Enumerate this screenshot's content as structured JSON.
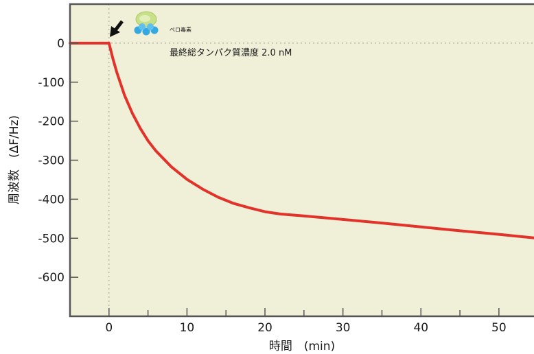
{
  "chart_data": {
    "type": "line",
    "title": "",
    "xlabel": "時間　(min)",
    "ylabel": "周波数　(ΔF/Hz)",
    "xlim": [
      -5,
      54.5
    ],
    "ylim": [
      -700,
      100
    ],
    "x_ticks": [
      0,
      10,
      20,
      30,
      40,
      50
    ],
    "x_tick_labels": [
      "0",
      "10",
      "20",
      "30",
      "40",
      "50"
    ],
    "y_ticks": [
      0,
      -100,
      -200,
      -300,
      -400,
      -500,
      -600
    ],
    "y_tick_labels": [
      "0",
      "-100",
      "-200",
      "-300",
      "-400",
      "-500",
      "-600"
    ],
    "grid": false,
    "reference_lines": {
      "x": 0,
      "y": 0,
      "style": "dotted"
    },
    "background": "#f0efd8",
    "series": [
      {
        "color": "#e2332a",
        "x": [
          -5,
          0,
          0.5,
          1,
          2,
          3,
          4,
          5,
          6,
          8,
          10,
          12,
          14,
          16,
          18,
          20,
          22,
          25,
          30,
          35,
          40,
          45,
          50,
          54.5
        ],
        "y": [
          0,
          0,
          -40,
          -75,
          -134,
          -180,
          -218,
          -250,
          -276,
          -317,
          -349,
          -374,
          -395,
          -411,
          -422,
          -432,
          -438,
          -443,
          -452,
          -461,
          -471,
          -481,
          -490,
          -499
        ]
      }
    ],
    "annotations": {
      "protein_label": "ベロ毒素",
      "concentration": "最終総タンパク質濃度 2.0 nM",
      "arrow_at_x": 0
    },
    "legend": "none"
  },
  "colors": {
    "plot_bg": "#f0efd8",
    "frame": "#555555",
    "line": "#e2332a",
    "protein_top": "#c9e08a",
    "protein_balls": "#36a8e0"
  },
  "icons": {
    "injection_arrow": "arrow-down-left-icon",
    "toxin_molecule": "protein-molecule-icon"
  }
}
